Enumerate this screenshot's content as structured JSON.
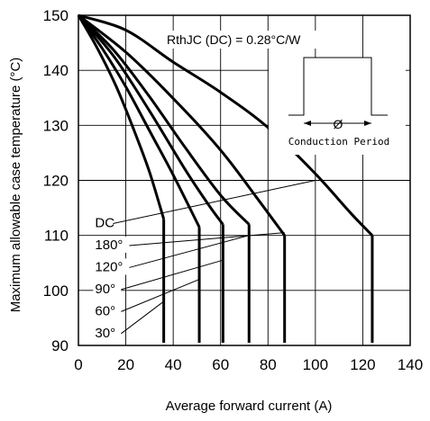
{
  "chart_data": {
    "type": "line",
    "title": "",
    "xlabel": "Average forward current (A)",
    "ylabel": "Maximum allowable case temperature (°C)",
    "xlim": [
      0,
      140
    ],
    "ylim": [
      90,
      150
    ],
    "xticks": [
      0,
      20,
      40,
      60,
      80,
      100,
      120,
      140
    ],
    "yticks": [
      90,
      100,
      110,
      120,
      130,
      140,
      150
    ],
    "grid": true,
    "annotation": "RthJC (DC) = 0.28°C/W",
    "inset": {
      "symbol": "Ø",
      "caption": "Conduction Period"
    },
    "series": [
      {
        "name": "DC",
        "points": [
          [
            0,
            150
          ],
          [
            20,
            147.3
          ],
          [
            40,
            141.5
          ],
          [
            60,
            136.0
          ],
          [
            80,
            129.6
          ],
          [
            100,
            121.2
          ],
          [
            115,
            114.0
          ],
          [
            124,
            110.0
          ]
        ],
        "drop_to": [
          124,
          90.5
        ]
      },
      {
        "name": "180°",
        "points": [
          [
            0,
            150
          ],
          [
            20,
            143.3
          ],
          [
            40,
            134.9
          ],
          [
            60,
            125.5
          ],
          [
            75,
            117.0
          ],
          [
            87,
            110.0
          ]
        ],
        "drop_to": [
          87,
          90.5
        ]
      },
      {
        "name": "120°",
        "points": [
          [
            0,
            150
          ],
          [
            15,
            143.6
          ],
          [
            30,
            135.2
          ],
          [
            45,
            126.0
          ],
          [
            60,
            117.3
          ],
          [
            72,
            112.0
          ]
        ],
        "drop_to": [
          72,
          90.5
        ]
      },
      {
        "name": "90°",
        "points": [
          [
            0,
            150
          ],
          [
            15,
            142.5
          ],
          [
            30,
            132.6
          ],
          [
            45,
            122.0
          ],
          [
            55,
            115.5
          ],
          [
            61,
            112.0
          ]
        ],
        "drop_to": [
          61,
          90.5
        ]
      },
      {
        "name": "60°",
        "points": [
          [
            0,
            150
          ],
          [
            10,
            144.0
          ],
          [
            20,
            137.0
          ],
          [
            30,
            129.0
          ],
          [
            40,
            121.0
          ],
          [
            51,
            111.5
          ]
        ],
        "drop_to": [
          51,
          90.5
        ]
      },
      {
        "name": "30°",
        "points": [
          [
            0,
            150
          ],
          [
            8,
            144.0
          ],
          [
            16,
            137.0
          ],
          [
            24,
            128.5
          ],
          [
            30,
            121.5
          ],
          [
            36,
            113.0
          ]
        ],
        "drop_to": [
          36,
          90.5
        ]
      }
    ],
    "label_leaders": [
      {
        "series": "DC",
        "label_at": [
          7,
          111.5
        ],
        "to": [
          100,
          120
        ]
      },
      {
        "series": "180°",
        "label_at": [
          7,
          107.5
        ],
        "to": [
          87,
          110.5
        ]
      },
      {
        "series": "120°",
        "label_at": [
          7,
          103.5
        ],
        "to": [
          72,
          110
        ]
      },
      {
        "series": "90°",
        "label_at": [
          7,
          99.5
        ],
        "to": [
          61,
          105.5
        ]
      },
      {
        "series": "60°",
        "label_at": [
          7,
          95.5
        ],
        "to": [
          51,
          102
        ]
      },
      {
        "series": "30°",
        "label_at": [
          7,
          91.5
        ],
        "to": [
          36,
          98
        ]
      }
    ]
  }
}
